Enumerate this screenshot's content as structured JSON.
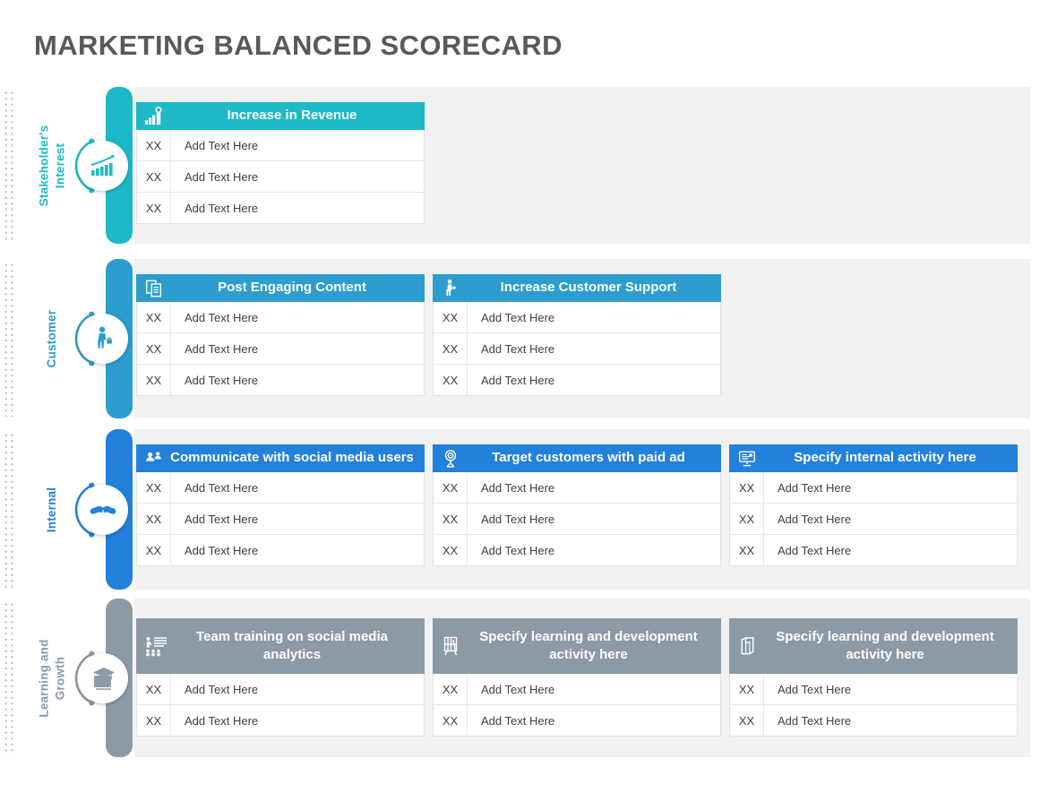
{
  "page": {
    "title": "MARKETING BALANCED SCORECARD"
  },
  "colors": {
    "title_text": "#595959",
    "panel_background": "#f1f1f2",
    "row_text": "#404040",
    "stakeholder_accent": "#1db9c6",
    "customer_accent": "#2c9dce",
    "internal_accent": "#2380db",
    "learning_accent": "#8c9aa6"
  },
  "sections": [
    {
      "label": "Stakeholder's Interest",
      "accent": "#1db9c6",
      "circle_icon": "growth-chart-icon",
      "tables": [
        {
          "icon": "bar-chart-coin-icon",
          "title": "Increase in Revenue",
          "rows": [
            {
              "code": "XX",
              "text": "Add Text Here"
            },
            {
              "code": "XX",
              "text": "Add Text Here"
            },
            {
              "code": "XX",
              "text": "Add Text Here"
            }
          ]
        }
      ]
    },
    {
      "label": "Customer",
      "accent": "#2c9dce",
      "circle_icon": "shopper-icon",
      "tables": [
        {
          "icon": "documents-icon",
          "title": "Post Engaging Content",
          "rows": [
            {
              "code": "XX",
              "text": "Add Text Here"
            },
            {
              "code": "XX",
              "text": "Add Text Here"
            },
            {
              "code": "XX",
              "text": "Add Text Here"
            }
          ]
        },
        {
          "icon": "customer-person-icon",
          "title": "Increase Customer Support",
          "rows": [
            {
              "code": "XX",
              "text": "Add Text Here"
            },
            {
              "code": "XX",
              "text": "Add Text Here"
            },
            {
              "code": "XX",
              "text": "Add Text Here"
            }
          ]
        }
      ]
    },
    {
      "label": "Internal",
      "accent": "#2380db",
      "circle_icon": "handshake-icon",
      "tables": [
        {
          "icon": "social-users-icon",
          "title": "Communicate with social media users",
          "rows": [
            {
              "code": "XX",
              "text": "Add Text Here"
            },
            {
              "code": "XX",
              "text": "Add Text Here"
            },
            {
              "code": "XX",
              "text": "Add Text Here"
            }
          ]
        },
        {
          "icon": "target-icon",
          "title": "Target customers with paid ad",
          "rows": [
            {
              "code": "XX",
              "text": "Add Text Here"
            },
            {
              "code": "XX",
              "text": "Add Text Here"
            },
            {
              "code": "XX",
              "text": "Add Text Here"
            }
          ]
        },
        {
          "icon": "monitor-icon",
          "title": "Specify internal activity here",
          "rows": [
            {
              "code": "XX",
              "text": "Add Text Here"
            },
            {
              "code": "XX",
              "text": "Add Text Here"
            },
            {
              "code": "XX",
              "text": "Add Text Here"
            }
          ]
        }
      ]
    },
    {
      "label": "Learning and Growth",
      "accent": "#8c9aa6",
      "circle_icon": "book-graduation-icon",
      "tables": [
        {
          "icon": "training-icon",
          "title": "Team training on social media analytics",
          "rows": [
            {
              "code": "XX",
              "text": "Add Text Here"
            },
            {
              "code": "XX",
              "text": "Add Text Here"
            }
          ]
        },
        {
          "icon": "bookshelf-icon",
          "title": "Specify learning and development activity here",
          "rows": [
            {
              "code": "XX",
              "text": "Add Text Here"
            },
            {
              "code": "XX",
              "text": "Add Text Here"
            }
          ]
        },
        {
          "icon": "folded-paper-icon",
          "title": "Specify learning and development activity here",
          "rows": [
            {
              "code": "XX",
              "text": "Add Text Here"
            },
            {
              "code": "XX",
              "text": "Add Text Here"
            }
          ]
        }
      ]
    }
  ]
}
